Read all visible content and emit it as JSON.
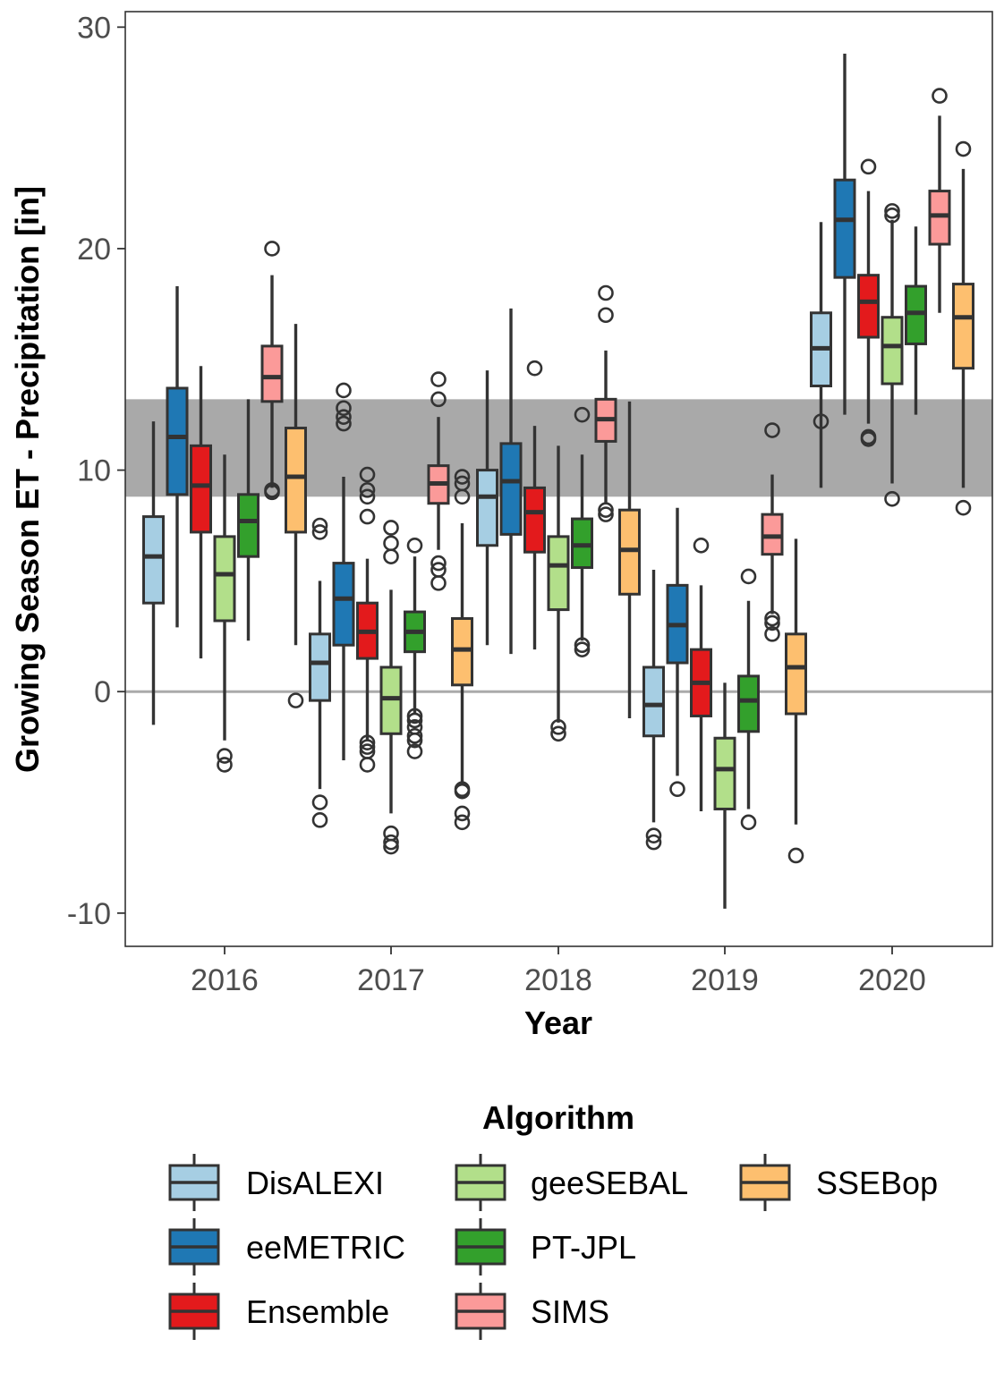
{
  "chart_data": {
    "type": "boxplot",
    "xlabel": "Year",
    "ylabel": "Growing Season ET - Precipitation [in]",
    "categories": [
      "2016",
      "2017",
      "2018",
      "2019",
      "2020"
    ],
    "ylim": [
      -11.5,
      30.7
    ],
    "yticks": [
      30,
      20,
      10,
      0,
      -10
    ],
    "ytick_labels": [
      "30",
      "20",
      "10",
      "0",
      "-10"
    ],
    "grid": false,
    "reference_band": {
      "from": 8.8,
      "to": 13.2,
      "color": "#a9a9a9"
    },
    "reference_line": {
      "value": 0,
      "color": "#aaaaaa"
    },
    "legend": {
      "title": "Algorithm",
      "placement": "bottom",
      "entries": [
        "DisALEXI",
        "eeMETRIC",
        "Ensemble",
        "geeSEBAL",
        "PT-JPL",
        "SIMS",
        "SSEBop"
      ]
    },
    "series": [
      {
        "name": "DisALEXI",
        "color": "#a6cee3",
        "boxes": [
          {
            "whislo": -1.5,
            "q1": 4.0,
            "med": 6.1,
            "q3": 7.9,
            "whishi": 12.2,
            "fliers": []
          },
          {
            "whislo": -4.4,
            "q1": -0.4,
            "med": 1.3,
            "q3": 2.6,
            "whishi": 5.0,
            "fliers": [
              7.5,
              7.2,
              -5.0,
              -5.8
            ]
          },
          {
            "whislo": 2.1,
            "q1": 6.6,
            "med": 8.8,
            "q3": 10.0,
            "whishi": 14.5,
            "fliers": []
          },
          {
            "whislo": -5.9,
            "q1": -2.0,
            "med": -0.6,
            "q3": 1.1,
            "whishi": 5.5,
            "fliers": [
              -6.5,
              -6.8
            ]
          },
          {
            "whislo": 9.2,
            "q1": 13.8,
            "med": 15.5,
            "q3": 17.1,
            "whishi": 21.2,
            "fliers": [
              12.2
            ]
          }
        ]
      },
      {
        "name": "eeMETRIC",
        "color": "#1f78b4",
        "boxes": [
          {
            "whislo": 2.9,
            "q1": 8.9,
            "med": 11.5,
            "q3": 13.7,
            "whishi": 18.3,
            "fliers": []
          },
          {
            "whislo": -3.1,
            "q1": 2.1,
            "med": 4.2,
            "q3": 5.8,
            "whishi": 9.7,
            "fliers": [
              13.6,
              12.8,
              12.4,
              12.1
            ]
          },
          {
            "whislo": 1.7,
            "q1": 7.1,
            "med": 9.5,
            "q3": 11.2,
            "whishi": 17.3,
            "fliers": []
          },
          {
            "whislo": -3.8,
            "q1": 1.3,
            "med": 3.0,
            "q3": 4.8,
            "whishi": 8.3,
            "fliers": [
              -4.4
            ]
          },
          {
            "whislo": 12.5,
            "q1": 18.7,
            "med": 21.3,
            "q3": 23.1,
            "whishi": 28.8,
            "fliers": []
          }
        ]
      },
      {
        "name": "Ensemble",
        "color": "#e31a1c",
        "boxes": [
          {
            "whislo": 1.5,
            "q1": 7.2,
            "med": 9.3,
            "q3": 11.1,
            "whishi": 14.7,
            "fliers": []
          },
          {
            "whislo": -2.2,
            "q1": 1.5,
            "med": 2.7,
            "q3": 4.0,
            "whishi": 6.0,
            "fliers": [
              9.8,
              9.1,
              8.8,
              7.9,
              -2.3,
              -2.5,
              -2.7,
              -3.3
            ]
          },
          {
            "whislo": 1.9,
            "q1": 6.3,
            "med": 8.1,
            "q3": 9.2,
            "whishi": 12.0,
            "fliers": [
              14.6
            ]
          },
          {
            "whislo": -5.4,
            "q1": -1.1,
            "med": 0.4,
            "q3": 1.9,
            "whishi": 4.8,
            "fliers": [
              6.6
            ]
          },
          {
            "whislo": 12.1,
            "q1": 16.0,
            "med": 17.6,
            "q3": 18.8,
            "whishi": 22.6,
            "fliers": [
              23.7,
              11.5,
              11.4
            ]
          }
        ]
      },
      {
        "name": "geeSEBAL",
        "color": "#b2df8a",
        "boxes": [
          {
            "whislo": -2.2,
            "q1": 3.2,
            "med": 5.3,
            "q3": 7.0,
            "whishi": 10.7,
            "fliers": [
              -2.9,
              -3.3
            ]
          },
          {
            "whislo": -5.5,
            "q1": -1.9,
            "med": -0.3,
            "q3": 1.1,
            "whishi": 4.6,
            "fliers": [
              7.4,
              6.7,
              6.1,
              -6.4,
              -6.8,
              -7.0
            ]
          },
          {
            "whislo": -1.4,
            "q1": 3.7,
            "med": 5.7,
            "q3": 7.0,
            "whishi": 11.1,
            "fliers": [
              -1.6,
              -1.9
            ]
          },
          {
            "whislo": -9.8,
            "q1": -5.3,
            "med": -3.5,
            "q3": -2.1,
            "whishi": 0.4,
            "fliers": []
          },
          {
            "whislo": 9.4,
            "q1": 13.9,
            "med": 15.6,
            "q3": 16.9,
            "whishi": 21.3,
            "fliers": [
              21.7,
              21.5,
              8.7
            ]
          }
        ]
      },
      {
        "name": "PT-JPL",
        "color": "#33a02c",
        "boxes": [
          {
            "whislo": 2.3,
            "q1": 6.1,
            "med": 7.7,
            "q3": 8.9,
            "whishi": 13.2,
            "fliers": []
          },
          {
            "whislo": -1.0,
            "q1": 1.8,
            "med": 2.7,
            "q3": 3.6,
            "whishi": 6.1,
            "fliers": [
              6.6,
              -1.1,
              -1.3,
              -1.6,
              -2.0,
              -2.2,
              -2.7
            ]
          },
          {
            "whislo": 2.3,
            "q1": 5.6,
            "med": 6.6,
            "q3": 7.8,
            "whishi": 10.7,
            "fliers": [
              12.5,
              2.1,
              1.9
            ]
          },
          {
            "whislo": -5.3,
            "q1": -1.8,
            "med": -0.4,
            "q3": 0.7,
            "whishi": 4.1,
            "fliers": [
              5.2,
              -5.9
            ]
          },
          {
            "whislo": 12.5,
            "q1": 15.7,
            "med": 17.1,
            "q3": 18.3,
            "whishi": 21.0,
            "fliers": []
          }
        ]
      },
      {
        "name": "SIMS",
        "color": "#fb9a99",
        "boxes": [
          {
            "whislo": 9.2,
            "q1": 13.1,
            "med": 14.2,
            "q3": 15.6,
            "whishi": 18.8,
            "fliers": [
              20.0,
              9.1,
              9.0
            ]
          },
          {
            "whislo": 6.4,
            "q1": 8.5,
            "med": 9.4,
            "q3": 10.2,
            "whishi": 12.4,
            "fliers": [
              14.1,
              13.2,
              5.8,
              5.5,
              4.9
            ]
          },
          {
            "whislo": 8.5,
            "q1": 11.3,
            "med": 12.3,
            "q3": 13.2,
            "whishi": 15.4,
            "fliers": [
              18.0,
              17.0,
              8.2,
              8.0
            ]
          },
          {
            "whislo": 3.5,
            "q1": 6.2,
            "med": 7.0,
            "q3": 8.0,
            "whishi": 9.8,
            "fliers": [
              11.8,
              3.3,
              3.1,
              2.6
            ]
          },
          {
            "whislo": 17.1,
            "q1": 20.2,
            "med": 21.5,
            "q3": 22.6,
            "whishi": 26.0,
            "fliers": [
              26.9
            ]
          }
        ]
      },
      {
        "name": "SSEBop",
        "color": "#fdbf6f",
        "boxes": [
          {
            "whislo": 2.1,
            "q1": 7.2,
            "med": 9.7,
            "q3": 11.9,
            "whishi": 16.6,
            "fliers": [
              -0.4
            ]
          },
          {
            "whislo": -4.1,
            "q1": 0.3,
            "med": 1.9,
            "q3": 3.3,
            "whishi": 7.6,
            "fliers": [
              9.7,
              9.4,
              8.8,
              -4.4,
              -4.5,
              -5.5,
              -5.9
            ]
          },
          {
            "whislo": -1.2,
            "q1": 4.4,
            "med": 6.4,
            "q3": 8.2,
            "whishi": 13.1,
            "fliers": []
          },
          {
            "whislo": -6.0,
            "q1": -1.0,
            "med": 1.1,
            "q3": 2.6,
            "whishi": 6.9,
            "fliers": [
              -7.4
            ]
          },
          {
            "whislo": 9.2,
            "q1": 14.6,
            "med": 16.9,
            "q3": 18.4,
            "whishi": 23.6,
            "fliers": [
              24.5,
              8.3
            ]
          }
        ]
      }
    ]
  }
}
